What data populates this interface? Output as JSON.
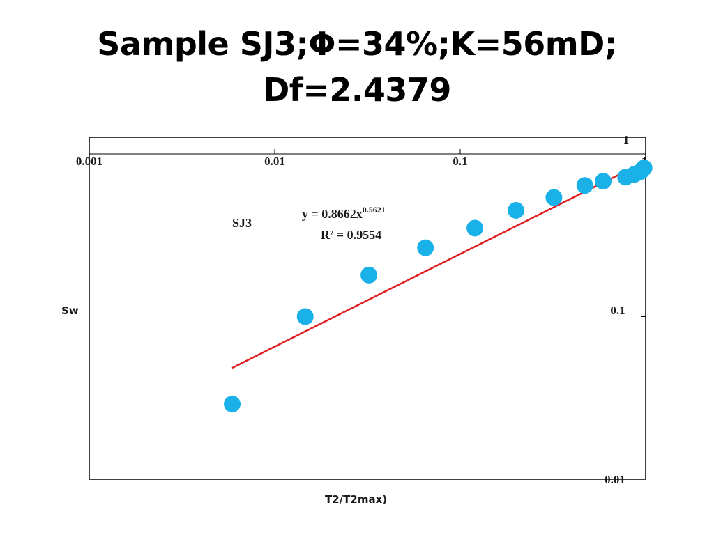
{
  "slide": {
    "title_line1": "Sample SJ3;Φ=34%;K=56mD;",
    "title_line2": "Df=2.4379"
  },
  "colors": {
    "points": "#1ab0e8",
    "trendline": "#e01b1b",
    "axis": "#000000"
  },
  "chart_data": {
    "type": "scatter",
    "title": "",
    "xlabel": "T2/T2max)",
    "ylabel": "Sw",
    "xscale": "log",
    "yscale": "log",
    "xlim": [
      0.001,
      1
    ],
    "ylim": [
      0.01,
      1
    ],
    "x_ticks": [
      0.001,
      0.01,
      0.1,
      1
    ],
    "x_tick_labels": [
      "0.001",
      "0.01",
      "0.1",
      "1"
    ],
    "y_ticks": [
      0.01,
      0.1,
      1
    ],
    "y_tick_labels": [
      "0.01",
      "0.1",
      "1"
    ],
    "series": [
      {
        "name": "SJ3",
        "x": [
          0.0059,
          0.0146,
          0.0322,
          0.065,
          0.12,
          0.2,
          0.32,
          0.47,
          0.59,
          0.78,
          0.87,
          0.94,
          0.98
        ],
        "y": [
          0.029,
          0.1,
          0.18,
          0.265,
          0.35,
          0.45,
          0.54,
          0.64,
          0.68,
          0.72,
          0.75,
          0.78,
          0.82
        ]
      }
    ],
    "trendline": {
      "type": "power",
      "a": 0.8662,
      "b": 0.5621,
      "x_range": [
        0.0059,
        1
      ],
      "equation_prefix": "y = 0.8662x",
      "equation_exponent": "0.5621",
      "r_squared_text": "R² = 0.9554"
    },
    "series_label": "SJ3"
  }
}
